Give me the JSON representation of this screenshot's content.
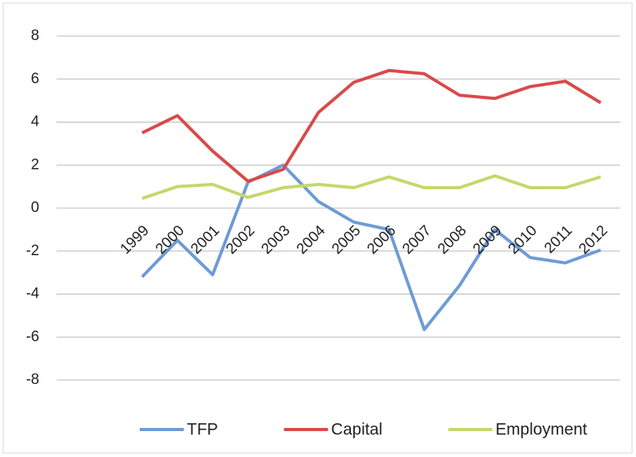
{
  "chart_data": {
    "type": "line",
    "categories": [
      "1999",
      "2000",
      "2001",
      "2002",
      "2003",
      "2004",
      "2005",
      "2006",
      "2007",
      "2008",
      "2009",
      "2010",
      "2011",
      "2012"
    ],
    "series": [
      {
        "name": "TFP",
        "color": "#6e9bd6",
        "values": [
          -3.2,
          -1.5,
          -3.1,
          1.2,
          2.0,
          0.3,
          -0.65,
          -1.0,
          -5.65,
          -3.6,
          -1.0,
          -2.3,
          -2.55,
          -1.95
        ]
      },
      {
        "name": "Capital",
        "color": "#d94a4a",
        "values": [
          3.5,
          4.3,
          2.65,
          1.25,
          1.8,
          4.45,
          5.85,
          6.4,
          6.25,
          5.25,
          5.1,
          5.65,
          5.9,
          4.9
        ]
      },
      {
        "name": "Employment",
        "color": "#c3d96b",
        "values": [
          0.45,
          1.0,
          1.1,
          0.5,
          0.95,
          1.1,
          0.95,
          1.45,
          0.95,
          0.95,
          1.5,
          0.95,
          0.95,
          1.45
        ]
      }
    ],
    "ylim": [
      -8,
      8
    ],
    "yticks": [
      -8,
      -6,
      -4,
      -2,
      0,
      2,
      4,
      6,
      8
    ],
    "grid": true,
    "legend": "bottom"
  }
}
